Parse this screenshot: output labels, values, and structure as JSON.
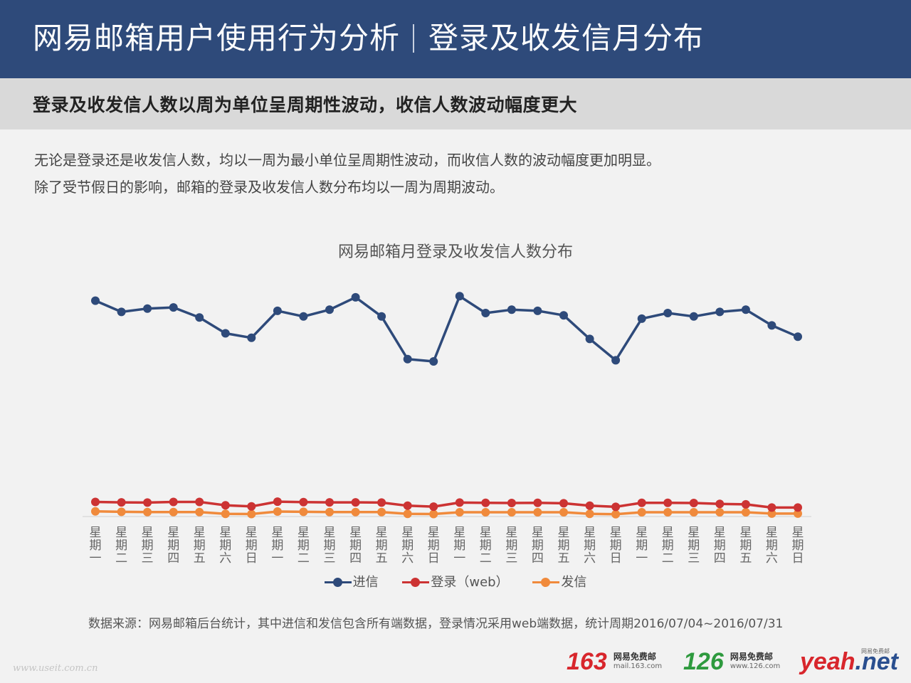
{
  "header": {
    "title_main": "网易邮箱用户使用行为分析",
    "title_sub": "登录及收发信月分布"
  },
  "subtitle": "登录及收发信人数以周为单位呈周期性波动，收信人数波动幅度更大",
  "description": [
    "无论是登录还是收发信人数，均以一周为最小单位呈周期性波动，而收信人数的波动幅度更加明显。",
    "除了受节假日的影响，邮箱的登录及收发信人数分布均以一周为周期波动。"
  ],
  "source": "数据来源：网易邮箱后台统计，其中进信和发信包含所有端数据，登录情况采用web端数据，统计周期2016/07/04~2016/07/31",
  "watermark": "www.useit.com.cn",
  "logos": {
    "l163": {
      "big": "163",
      "name": "网易免费邮",
      "url": "mail.163.com"
    },
    "l126": {
      "big": "126",
      "name": "网易免费邮",
      "url": "www.126.com"
    },
    "yeah": {
      "part1": "yeah",
      "part2": ".net",
      "tag": "网易免费邮"
    }
  },
  "colors": {
    "header_bg": "#2e4a7a",
    "receive": "#2e4a7a",
    "login": "#cc3333",
    "send": "#f08a3c"
  },
  "chart_data": {
    "type": "line",
    "title": "网易邮箱月登录及收发信人数分布",
    "categories": [
      "星期一",
      "星期二",
      "星期三",
      "星期四",
      "星期五",
      "星期六",
      "星期日",
      "星期一",
      "星期二",
      "星期三",
      "星期四",
      "星期五",
      "星期六",
      "星期日",
      "星期一",
      "星期二",
      "星期三",
      "星期四",
      "星期五",
      "星期六",
      "星期日",
      "星期一",
      "星期二",
      "星期三",
      "星期四",
      "星期五",
      "星期六",
      "星期日"
    ],
    "y_axis_shown": false,
    "ylim": [
      0,
      100
    ],
    "grid": false,
    "legend_position": "bottom",
    "series": [
      {
        "name": "进信",
        "color": "#2e4a7a",
        "values": [
          96,
          91,
          92.5,
          93,
          88.5,
          81.5,
          79.5,
          91.5,
          89,
          92,
          97.5,
          89,
          70,
          69,
          98,
          90.5,
          92,
          91.5,
          89.5,
          79,
          69.5,
          88,
          90.5,
          89,
          91,
          92,
          85,
          80
        ]
      },
      {
        "name": "登录（web）",
        "color": "#cc3333",
        "values": [
          6.5,
          6.3,
          6.2,
          6.5,
          6.5,
          5.0,
          4.5,
          6.6,
          6.4,
          6.3,
          6.3,
          6.2,
          4.8,
          4.4,
          6.2,
          6.1,
          6.0,
          6.1,
          5.9,
          4.8,
          4.3,
          6.1,
          6.1,
          6.0,
          5.6,
          5.4,
          4.0,
          4.0
        ]
      },
      {
        "name": "发信",
        "color": "#f08a3c",
        "values": [
          2.3,
          2.1,
          2.0,
          2.0,
          2.0,
          1.2,
          1.1,
          2.2,
          2.1,
          2.0,
          2.0,
          2.0,
          1.2,
          1.1,
          1.9,
          1.9,
          1.9,
          1.9,
          1.9,
          1.2,
          1.0,
          1.9,
          1.9,
          1.9,
          1.9,
          1.9,
          1.3,
          1.3
        ]
      }
    ]
  }
}
